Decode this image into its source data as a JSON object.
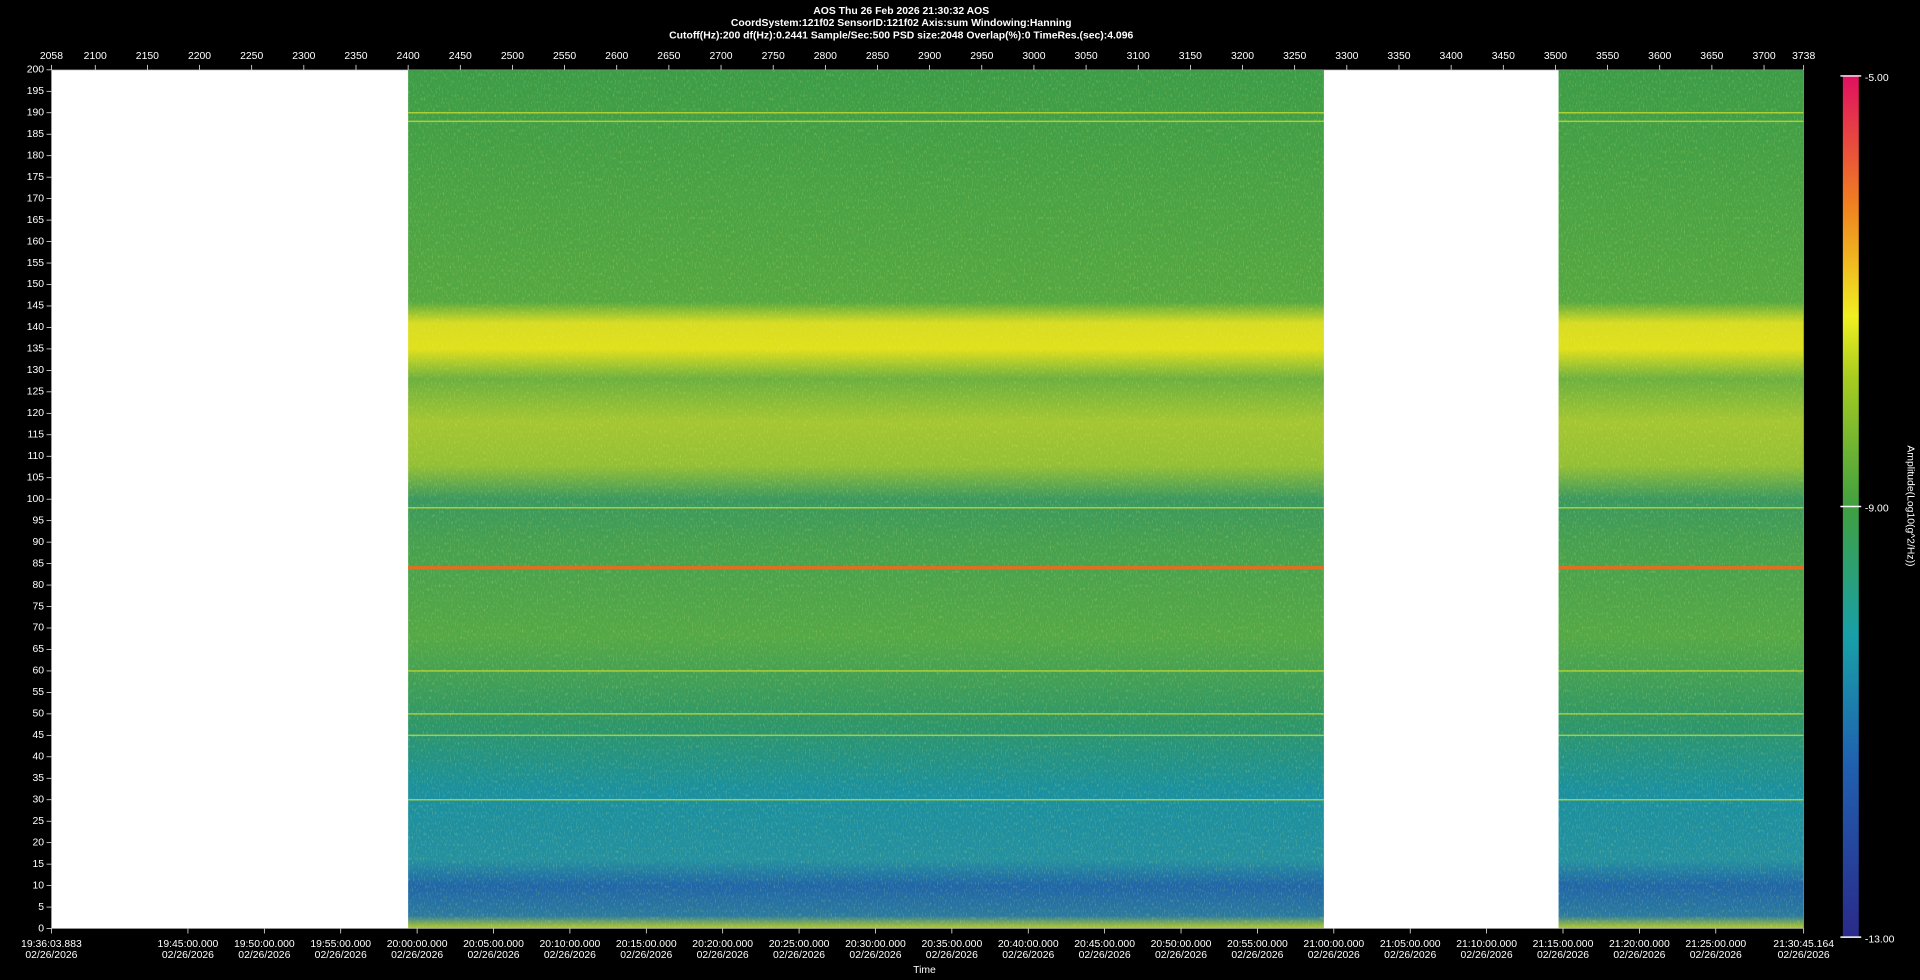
{
  "chart_data": {
    "type": "spectrogram",
    "title": "AOS  Thu 26 Feb 2026 21:30:32  AOS",
    "subtitle": "CoordSystem:121f02   SensorID:121f02   Axis:sum   Windowing:Hanning",
    "settings_line": "Cutoff(Hz):200     df(Hz):0.2441     Sample/Sec:500     PSD size:2048     Overlap(%):0     TimeRes.(sec):4.096",
    "xlabel": "Time",
    "colorbar_label": "Amplitude(Log10(g^2/Hz))",
    "x2lim": [
      2058,
      3738
    ],
    "x2ticks": [
      2058,
      2100,
      2150,
      2200,
      2250,
      2300,
      2350,
      2400,
      2450,
      2500,
      2550,
      2600,
      2650,
      2700,
      2750,
      2800,
      2850,
      2900,
      2950,
      3000,
      3050,
      3100,
      3150,
      3200,
      3250,
      3300,
      3350,
      3400,
      3450,
      3500,
      3550,
      3600,
      3650,
      3700,
      3738
    ],
    "segments": [
      [
        2400,
        3278
      ],
      [
        3503,
        3738
      ]
    ],
    "ylim": [
      0,
      200
    ],
    "yticks": [
      0,
      5,
      10,
      15,
      20,
      25,
      30,
      35,
      40,
      45,
      50,
      55,
      60,
      65,
      70,
      75,
      80,
      85,
      90,
      95,
      100,
      105,
      110,
      115,
      120,
      125,
      130,
      135,
      140,
      145,
      150,
      155,
      160,
      165,
      170,
      175,
      180,
      185,
      190,
      195,
      200
    ],
    "xlim": [
      "19:36:03.883",
      "21:30:45.164"
    ],
    "xticks": [
      {
        "time": "19:36:03.883",
        "date": "02/26/2026"
      },
      {
        "time": "19:45:00.000",
        "date": "02/26/2026"
      },
      {
        "time": "19:50:00.000",
        "date": "02/26/2026"
      },
      {
        "time": "19:55:00.000",
        "date": "02/26/2026"
      },
      {
        "time": "20:00:00.000",
        "date": "02/26/2026"
      },
      {
        "time": "20:05:00.000",
        "date": "02/26/2026"
      },
      {
        "time": "20:10:00.000",
        "date": "02/26/2026"
      },
      {
        "time": "20:15:00.000",
        "date": "02/26/2026"
      },
      {
        "time": "20:20:00.000",
        "date": "02/26/2026"
      },
      {
        "time": "20:25:00.000",
        "date": "02/26/2026"
      },
      {
        "time": "20:30:00.000",
        "date": "02/26/2026"
      },
      {
        "time": "20:35:00.000",
        "date": "02/26/2026"
      },
      {
        "time": "20:40:00.000",
        "date": "02/26/2026"
      },
      {
        "time": "20:45:00.000",
        "date": "02/26/2026"
      },
      {
        "time": "20:50:00.000",
        "date": "02/26/2026"
      },
      {
        "time": "20:55:00.000",
        "date": "02/26/2026"
      },
      {
        "time": "21:00:00.000",
        "date": "02/26/2026"
      },
      {
        "time": "21:05:00.000",
        "date": "02/26/2026"
      },
      {
        "time": "21:10:00.000",
        "date": "02/26/2026"
      },
      {
        "time": "21:15:00.000",
        "date": "02/26/2026"
      },
      {
        "time": "21:20:00.000",
        "date": "02/26/2026"
      },
      {
        "time": "21:25:00.000",
        "date": "02/26/2026"
      },
      {
        "time": "21:30:45.164",
        "date": "02/26/2026"
      }
    ],
    "clim": [
      -13,
      -5
    ],
    "cticks": [
      {
        "value": -5,
        "label": "-5.00"
      },
      {
        "value": -9,
        "label": "-9.00"
      },
      {
        "value": -13,
        "label": "-13.00"
      }
    ]
  }
}
